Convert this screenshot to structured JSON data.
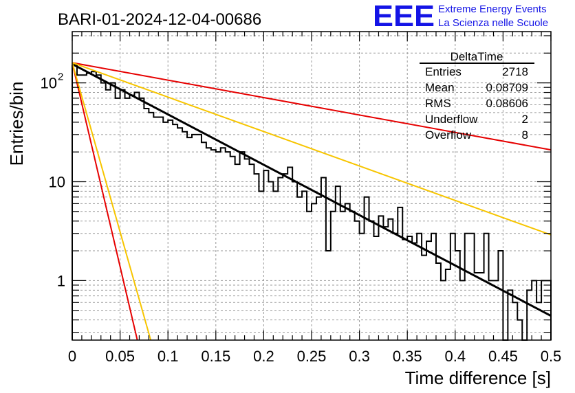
{
  "title": "BARI-01-2024-12-04-00686",
  "logo": {
    "mark": "EEE",
    "line1": "Extreme Energy Events",
    "line2": "La Scienza nelle Scuole",
    "color": "#1414e6"
  },
  "stats_box": {
    "title": "DeltaTime",
    "rows": [
      {
        "label": "Entries",
        "value": "2718"
      },
      {
        "label": "Mean",
        "value": "0.08709"
      },
      {
        "label": "RMS",
        "value": "0.08606"
      },
      {
        "label": "Underflow",
        "value": "2"
      },
      {
        "label": "Overflow",
        "value": "8"
      }
    ]
  },
  "chart_data": {
    "type": "histogram",
    "title": "BARI-01-2024-12-04-00686",
    "xlabel": "Time difference [s]",
    "ylabel": "Entries/bin",
    "xlim": [
      0,
      0.5
    ],
    "ylim": [
      0.25,
      330
    ],
    "yscale": "log",
    "grid": true,
    "x_ticks": [
      "0",
      "0.05",
      "0.1",
      "0.15",
      "0.2",
      "0.25",
      "0.3",
      "0.35",
      "0.4",
      "0.45",
      "0.5"
    ],
    "x_tick_values": [
      0,
      0.05,
      0.1,
      0.15,
      0.2,
      0.25,
      0.3,
      0.35,
      0.4,
      0.45,
      0.5
    ],
    "y_ticks": [
      {
        "base": "1",
        "exp": ""
      },
      {
        "base": "10",
        "exp": ""
      },
      {
        "base": "10",
        "exp": "2"
      }
    ],
    "y_tick_values": [
      1,
      10,
      100
    ],
    "bin_width": 0.005,
    "histogram_values": [
      150,
      120,
      120,
      125,
      130,
      120,
      100,
      85,
      100,
      70,
      85,
      70,
      75,
      80,
      70,
      55,
      50,
      45,
      45,
      40,
      42,
      38,
      35,
      32,
      28,
      30,
      30,
      25,
      22,
      21,
      20,
      22,
      20,
      18,
      15,
      20,
      17,
      15,
      12,
      8,
      13,
      10,
      8,
      11,
      12,
      14,
      10,
      7,
      8,
      5,
      6,
      7,
      11,
      2,
      5,
      9,
      5,
      6,
      5,
      4,
      3,
      7,
      4,
      2.8,
      4.5,
      3.5,
      4.2,
      3.0,
      5.5,
      2.6,
      2.8,
      2.4,
      3.0,
      1.8,
      2.5,
      3.0,
      1.5,
      1.0,
      1.3,
      3.0,
      2.0,
      1.0,
      3.0,
      3.0,
      1.2,
      1.2,
      3.0,
      1.0,
      1.0,
      2.0,
      0.2,
      0.8,
      0.6,
      0.4,
      0.2,
      0.8,
      1.0,
      0.6,
      1.0,
      1.0
    ],
    "series": [
      {
        "name": "fit",
        "color": "#000000",
        "x": [
          0,
          0.5
        ],
        "values": [
          155,
          0.44
        ]
      },
      {
        "name": "rate-upper-slow",
        "color": "#e60000",
        "x": [
          0,
          0.5
        ],
        "values": [
          160,
          21
        ]
      },
      {
        "name": "rate-upper-mid",
        "color": "#f7c500",
        "x": [
          0,
          0.5
        ],
        "values": [
          160,
          2.9
        ]
      },
      {
        "name": "rate-lower-fast",
        "color": "#e60000",
        "x": [
          0,
          0.068
        ],
        "values": [
          160,
          0.25
        ]
      },
      {
        "name": "rate-lower-mid",
        "color": "#f7c500",
        "x": [
          0,
          0.082
        ],
        "values": [
          160,
          0.25
        ]
      }
    ]
  }
}
